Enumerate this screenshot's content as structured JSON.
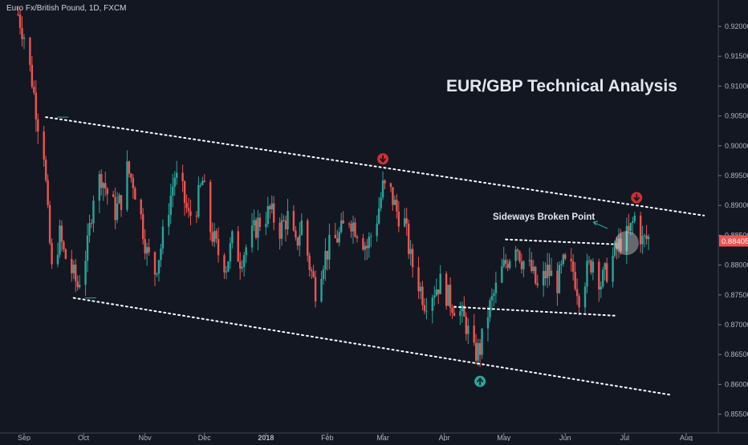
{
  "header": {
    "symbol": "Euro Fx/British Pound, 1D, FXCM"
  },
  "colors": {
    "background": "#131722",
    "up": "#26a69a",
    "down": "#ef5350",
    "text": "#b2b5be",
    "trendline": "#ffffff"
  },
  "chart_data": {
    "type": "candlestick",
    "title": "EUR/GBP Technical Analysis",
    "x_axis": {
      "tick_labels": [
        "Sep",
        "Oct",
        "Nov",
        "Dec",
        "2018",
        "Feb",
        "Mar",
        "Apr",
        "May",
        "Jun",
        "Jul",
        "Aug"
      ],
      "tick_dates": [
        "2017-09-01",
        "2017-10-01",
        "2017-11-01",
        "2017-12-01",
        "2018-01-01",
        "2018-02-01",
        "2018-03-01",
        "2018-04-01",
        "2018-05-01",
        "2018-06-01",
        "2018-07-01",
        "2018-08-01"
      ],
      "range": [
        "2017-09-01",
        "2018-08-12"
      ]
    },
    "y_axis": {
      "side": "right",
      "tick_labels": [
        "0.92000",
        "0.91500",
        "0.91000",
        "0.90500",
        "0.90000",
        "0.89500",
        "0.89000",
        "0.88500",
        "0.88000",
        "0.87500",
        "0.87000",
        "0.86500",
        "0.86000",
        "0.85500"
      ],
      "tick_values": [
        0.92,
        0.915,
        0.91,
        0.905,
        0.9,
        0.895,
        0.89,
        0.885,
        0.88,
        0.875,
        0.87,
        0.865,
        0.86,
        0.855
      ],
      "range": [
        0.853,
        0.9228
      ]
    },
    "last_price": {
      "value": 0.88405,
      "label": "0.88405"
    },
    "price_path": [
      [
        "2017-08-29",
        0.922
      ],
      [
        "2017-09-01",
        0.9185
      ],
      [
        "2017-09-05",
        0.911
      ],
      [
        "2017-09-08",
        0.904
      ],
      [
        "2017-09-11",
        0.899
      ],
      [
        "2017-09-13",
        0.888
      ],
      [
        "2017-09-15",
        0.879
      ],
      [
        "2017-09-19",
        0.885
      ],
      [
        "2017-09-21",
        0.882
      ],
      [
        "2017-09-25",
        0.879
      ],
      [
        "2017-09-28",
        0.8765
      ],
      [
        "2017-10-03",
        0.883
      ],
      [
        "2017-10-06",
        0.892
      ],
      [
        "2017-10-10",
        0.895
      ],
      [
        "2017-10-13",
        0.892
      ],
      [
        "2017-10-17",
        0.889
      ],
      [
        "2017-10-20",
        0.891
      ],
      [
        "2017-10-23",
        0.896
      ],
      [
        "2017-10-26",
        0.894
      ],
      [
        "2017-10-30",
        0.888
      ],
      [
        "2017-11-02",
        0.882
      ],
      [
        "2017-11-06",
        0.879
      ],
      [
        "2017-11-09",
        0.883
      ],
      [
        "2017-11-13",
        0.89
      ],
      [
        "2017-11-16",
        0.895
      ],
      [
        "2017-11-20",
        0.892
      ],
      [
        "2017-11-23",
        0.888
      ],
      [
        "2017-11-27",
        0.89
      ],
      [
        "2017-11-30",
        0.894
      ],
      [
        "2017-12-04",
        0.886
      ],
      [
        "2017-12-08",
        0.882
      ],
      [
        "2017-12-12",
        0.88
      ],
      [
        "2017-12-15",
        0.884
      ],
      [
        "2017-12-19",
        0.881
      ],
      [
        "2017-12-22",
        0.883
      ],
      [
        "2017-12-28",
        0.887
      ],
      [
        "2018-01-03",
        0.889
      ],
      [
        "2018-01-08",
        0.886
      ],
      [
        "2018-01-12",
        0.888
      ],
      [
        "2018-01-16",
        0.883
      ],
      [
        "2018-01-19",
        0.887
      ],
      [
        "2018-01-23",
        0.88
      ],
      [
        "2018-01-26",
        0.876
      ],
      [
        "2018-01-30",
        0.881
      ],
      [
        "2018-02-02",
        0.883
      ],
      [
        "2018-02-07",
        0.885
      ],
      [
        "2018-02-12",
        0.888
      ],
      [
        "2018-02-16",
        0.886
      ],
      [
        "2018-02-21",
        0.883
      ],
      [
        "2018-02-26",
        0.888
      ],
      [
        "2018-03-01",
        0.893
      ],
      [
        "2018-03-05",
        0.892
      ],
      [
        "2018-03-08",
        0.889
      ],
      [
        "2018-03-12",
        0.887
      ],
      [
        "2018-03-15",
        0.881
      ],
      [
        "2018-03-19",
        0.877
      ],
      [
        "2018-03-22",
        0.874
      ],
      [
        "2018-03-27",
        0.876
      ],
      [
        "2018-03-30",
        0.877
      ],
      [
        "2018-04-04",
        0.874
      ],
      [
        "2018-04-09",
        0.872
      ],
      [
        "2018-04-12",
        0.87
      ],
      [
        "2018-04-16",
        0.865
      ],
      [
        "2018-04-19",
        0.866
      ],
      [
        "2018-04-23",
        0.872
      ],
      [
        "2018-04-26",
        0.875
      ],
      [
        "2018-04-30",
        0.879
      ],
      [
        "2018-05-03",
        0.881
      ],
      [
        "2018-05-07",
        0.884
      ],
      [
        "2018-05-10",
        0.881
      ],
      [
        "2018-05-15",
        0.879
      ],
      [
        "2018-05-18",
        0.876
      ],
      [
        "2018-05-23",
        0.879
      ],
      [
        "2018-05-28",
        0.877
      ],
      [
        "2018-05-31",
        0.88
      ],
      [
        "2018-06-05",
        0.879
      ],
      [
        "2018-06-08",
        0.875
      ],
      [
        "2018-06-12",
        0.879
      ],
      [
        "2018-06-15",
        0.881
      ],
      [
        "2018-06-19",
        0.877
      ],
      [
        "2018-06-22",
        0.879
      ],
      [
        "2018-06-26",
        0.882
      ],
      [
        "2018-06-29",
        0.884
      ],
      [
        "2018-07-03",
        0.885
      ],
      [
        "2018-07-06",
        0.888
      ],
      [
        "2018-07-10",
        0.884
      ],
      [
        "2018-07-13",
        0.8845
      ]
    ],
    "annotations": [
      {
        "text": "Sideways Broken Point",
        "date": "2018-06-10",
        "price": 0.8857
      }
    ],
    "trendlines": [
      {
        "name": "upper-channel",
        "from": [
          "2017-09-12",
          0.9048
        ],
        "to": [
          "2018-08-10",
          0.8883
        ]
      },
      {
        "name": "lower-channel",
        "from": [
          "2017-09-26",
          0.8745
        ],
        "to": [
          "2018-07-25",
          0.8582
        ]
      },
      {
        "name": "range-top",
        "from": [
          "2018-05-02",
          0.8843
        ],
        "to": [
          "2018-06-25",
          0.8835
        ]
      },
      {
        "name": "range-bottom",
        "from": [
          "2018-04-06",
          0.873
        ],
        "to": [
          "2018-06-27",
          0.8715
        ]
      }
    ],
    "markers": [
      {
        "type": "sell",
        "date": "2018-03-01",
        "price": 0.8978
      },
      {
        "type": "buy",
        "date": "2018-04-19",
        "price": 0.8605
      },
      {
        "type": "sell",
        "date": "2018-07-07",
        "price": 0.8913
      }
    ],
    "grid": false
  }
}
